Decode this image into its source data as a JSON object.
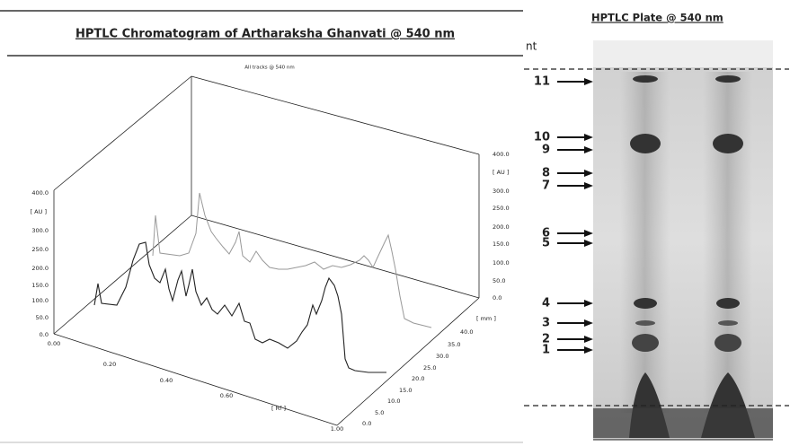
{
  "left_panel": {
    "title": "HPTLC Chromatogram of Artharaksha Ghanvati @ 540 nm",
    "subtitle": "All tracks @ 540 nm",
    "left_axis": {
      "unit": "[ AU ]",
      "ticks": [
        "400.0",
        "300.0",
        "250.0",
        "200.0",
        "150.0",
        "100.0",
        "50.0",
        "0.0"
      ]
    },
    "right_axis": {
      "unit": "[ AU ]",
      "ticks": [
        "400.0",
        "300.0",
        "250.0",
        "200.0",
        "150.0",
        "100.0",
        "50.0",
        "0.0"
      ]
    },
    "rf_axis": {
      "label": "[ Rf ]",
      "ticks": [
        "0.00",
        "0.20",
        "0.40",
        "0.60",
        "1.00"
      ]
    },
    "mm_axis": {
      "label": "[ mm ]",
      "ticks": [
        "40.0",
        "35.0",
        "30.0",
        "25.0",
        "20.0",
        "15.0",
        "10.0",
        "5.0",
        "0.0"
      ]
    }
  },
  "right_panel": {
    "title": "HPTLC Plate @ 540 nm",
    "corner_text": "nt",
    "band_labels": [
      "11",
      "10",
      "9",
      "8",
      "7",
      "6",
      "5",
      "4",
      "3",
      "2",
      "1"
    ]
  }
}
